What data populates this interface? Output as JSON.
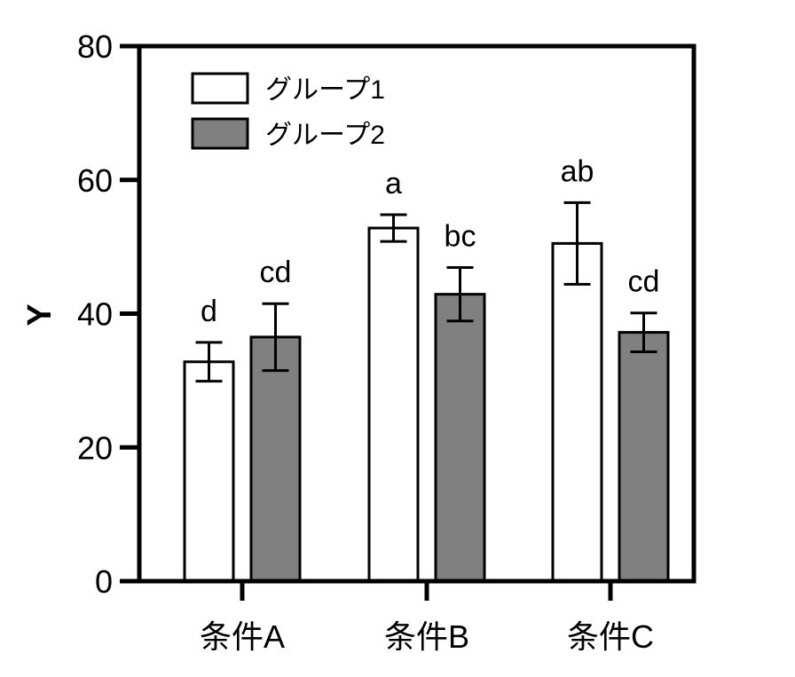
{
  "chart_data": {
    "type": "bar",
    "title": "",
    "xlabel": "",
    "ylabel": "Y",
    "ylim": [
      0,
      80
    ],
    "yticks": [
      0,
      20,
      40,
      60,
      80
    ],
    "categories": [
      "条件A",
      "条件B",
      "条件C"
    ],
    "series": [
      {
        "name": "グループ1",
        "color": "#ffffff",
        "values": [
          32.8,
          52.8,
          50.5
        ],
        "errors": [
          2.9,
          2.0,
          6.1
        ],
        "significance": [
          "d",
          "a",
          "ab"
        ]
      },
      {
        "name": "グループ2",
        "color": "#808080",
        "values": [
          36.5,
          42.9,
          37.2
        ],
        "errors": [
          5.0,
          4.0,
          2.9
        ],
        "significance": [
          "cd",
          "bc",
          "cd"
        ]
      }
    ],
    "legend": {
      "position": "top-left"
    },
    "grid": false,
    "frame": "top and right borders drawn"
  }
}
